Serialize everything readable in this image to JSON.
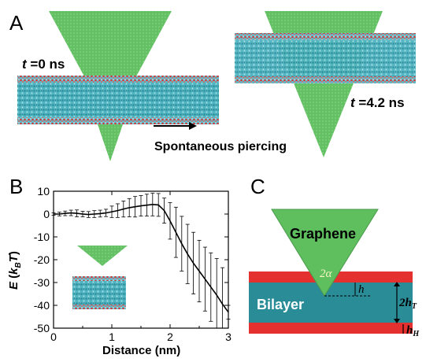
{
  "panel_a": {
    "letter": "A",
    "t0_label": "t =0 ns",
    "t0_sym": "t",
    "t0_rest": " =0 ns",
    "t1_sym": "t",
    "t1_rest": " =4.2 ns",
    "caption": "Spontaneous piercing"
  },
  "panel_b": {
    "letter": "B",
    "ylabel_e": "E",
    "ylabel_open": " (",
    "ylabel_k": "k",
    "ylabel_sub": "B",
    "ylabel_t": "T",
    "ylabel_close": ")",
    "xlabel": "Distance (nm)"
  },
  "panel_c": {
    "letter": "C",
    "graphene_label": "Graphene",
    "bilayer_label": "Bilayer",
    "alpha_label": "2α",
    "h_label": "h",
    "hT_label": "2hT",
    "hT_main": "2h",
    "hT_sub": "T",
    "hH_main": "h",
    "hH_sub": "H"
  },
  "colors": {
    "graphene": "#5fbf5f",
    "lipid_tail": "#3aa7b4",
    "lipid_head": "#d23a3a",
    "bilayer_core": "#2a8c96",
    "head_layer": "#e53030"
  },
  "chart_data": {
    "type": "line",
    "title": "",
    "xlabel": "Distance (nm)",
    "ylabel": "E (kBT)",
    "xlim": [
      0,
      3
    ],
    "ylim": [
      -50,
      10
    ],
    "xticks": [
      "0",
      "1",
      "2",
      "3"
    ],
    "yticks": [
      "10",
      "0",
      "-10",
      "-20",
      "-30",
      "-40",
      "-50"
    ],
    "series": [
      {
        "x": [
          0.0,
          0.1,
          0.2,
          0.3,
          0.4,
          0.5,
          0.6,
          0.7,
          0.8,
          0.9,
          1.0,
          1.1,
          1.2,
          1.3,
          1.4,
          1.5,
          1.6,
          1.7,
          1.8,
          1.9,
          2.0,
          2.1,
          2.2,
          2.3,
          2.4,
          2.5,
          2.6,
          2.7,
          2.8,
          2.9,
          3.0
        ],
        "y": [
          0.0,
          0.0,
          0.3,
          0.5,
          0.3,
          0.0,
          -0.2,
          0.0,
          0.2,
          0.5,
          1.0,
          1.5,
          2.2,
          2.8,
          3.2,
          3.6,
          3.9,
          4.2,
          4.0,
          1.5,
          -3.0,
          -8.0,
          -13.0,
          -17.5,
          -21.5,
          -25.0,
          -28.5,
          -32.0,
          -35.5,
          -39.5,
          -43.0
        ],
        "error": [
          0.5,
          0.8,
          1.0,
          1.2,
          1.5,
          1.2,
          1.3,
          1.5,
          1.5,
          1.6,
          2.5,
          3.0,
          3.5,
          4.0,
          4.5,
          4.5,
          4.8,
          5.0,
          5.0,
          5.5,
          8.0,
          11.0,
          12.0,
          13.0,
          13.5,
          13.5,
          14.0,
          15.0,
          16.0,
          16.0,
          3.0
        ]
      }
    ],
    "grid": false,
    "legend": "none"
  }
}
